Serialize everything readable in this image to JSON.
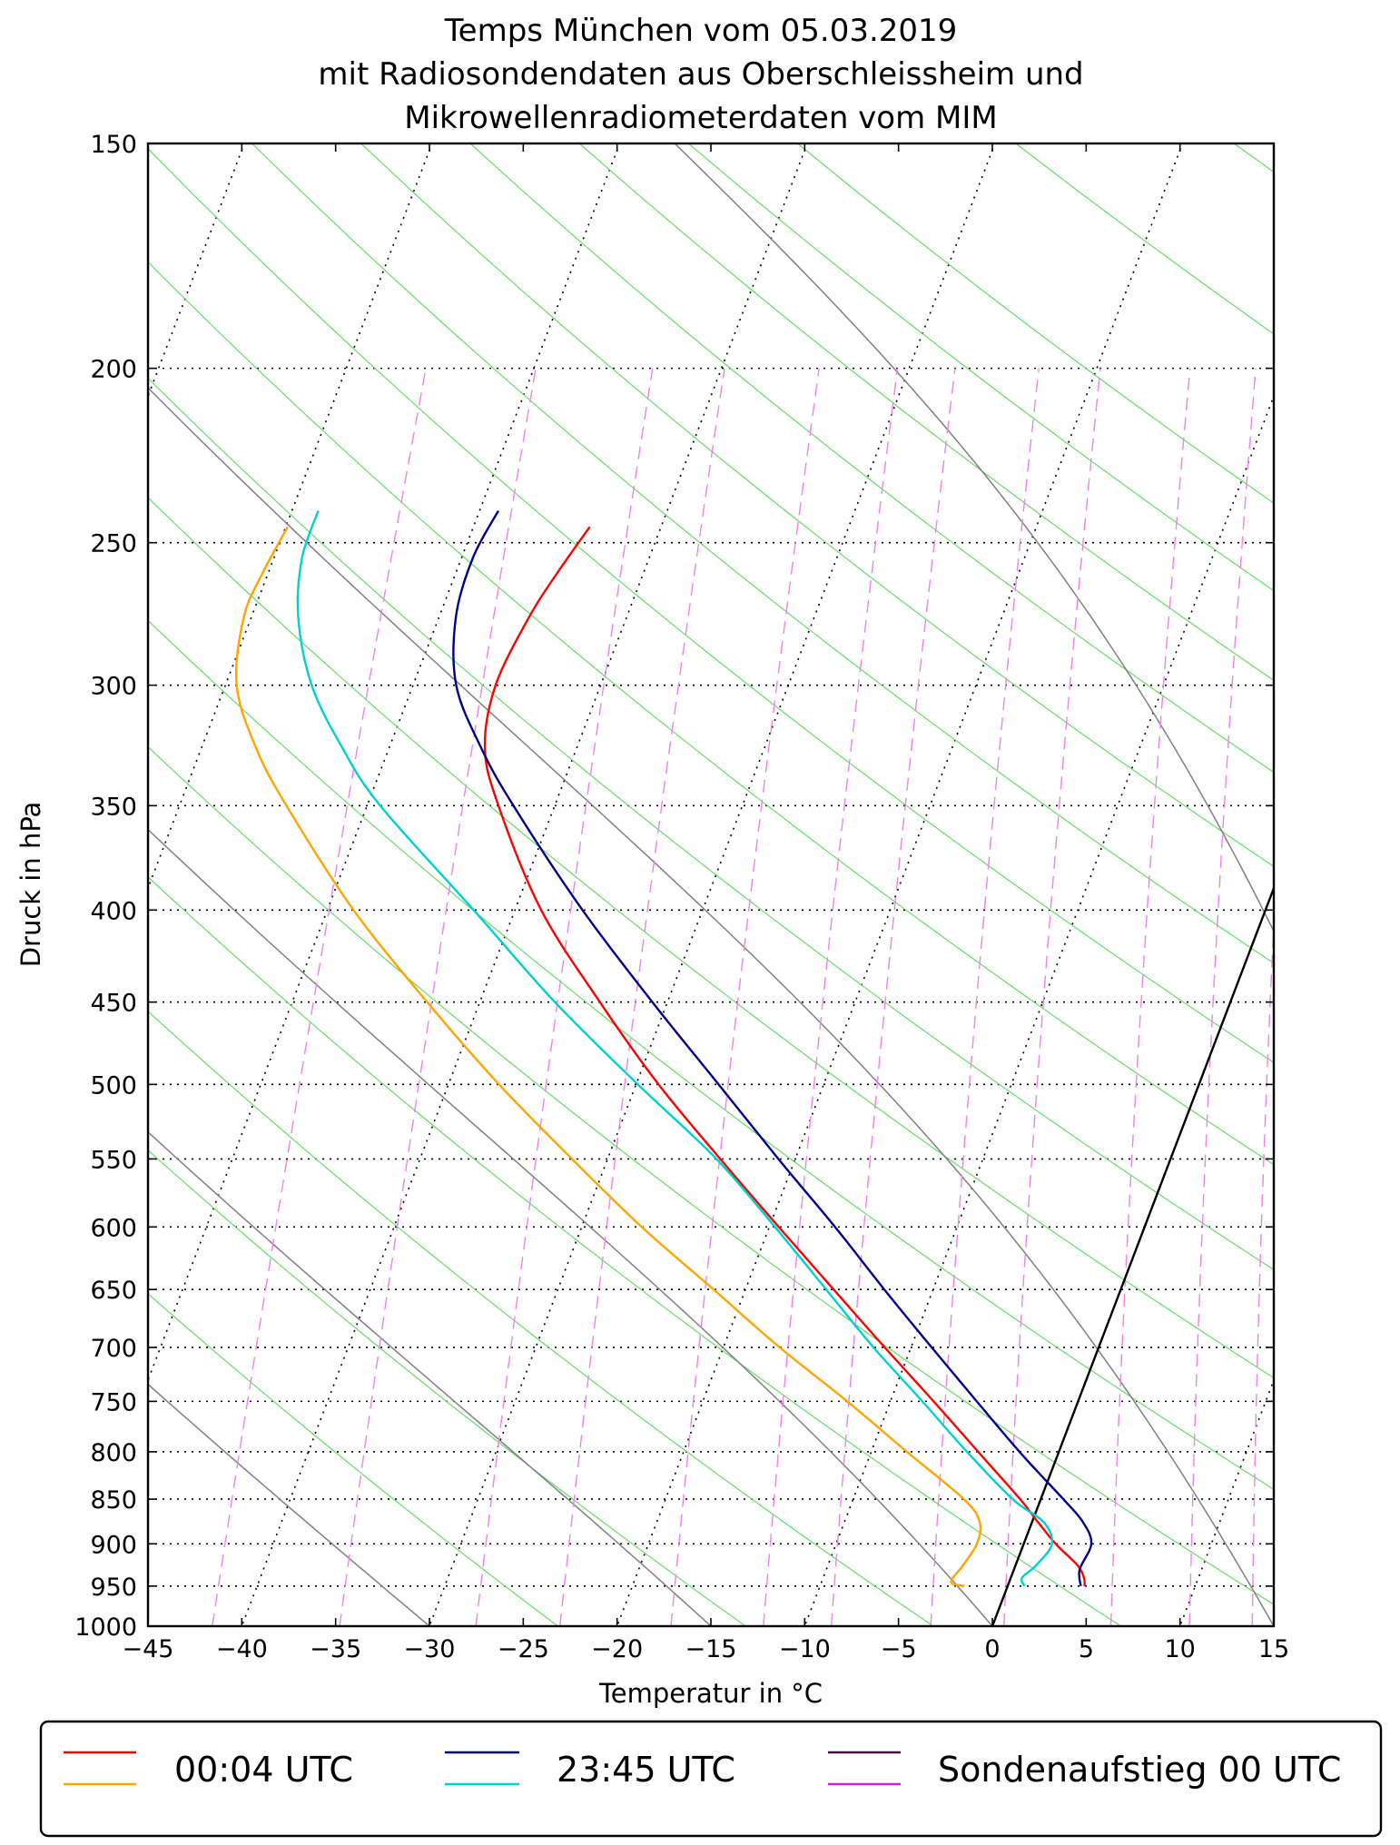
{
  "chart_data": {
    "type": "line",
    "subtype": "skew-T log-p diagram",
    "title": [
      "Temps München vom 05.03.2019",
      "mit Radiosondendaten aus Oberschleissheim und",
      "Mikrowellenradiometerdaten vom MIM"
    ],
    "xlabel": "Temperatur in °C",
    "ylabel": "Druck in hPa",
    "xlim": [
      -45,
      15
    ],
    "ylim": [
      1000,
      150
    ],
    "x_ticks": [
      -45,
      -40,
      -35,
      -30,
      -25,
      -20,
      -15,
      -10,
      -5,
      0,
      5,
      10,
      15
    ],
    "x_tick_labels": [
      "−45",
      "−40",
      "−35",
      "−30",
      "−25",
      "−20",
      "−15",
      "−10",
      "−5",
      "0",
      "5",
      "10",
      "15"
    ],
    "y_ticks": [
      150,
      200,
      250,
      300,
      350,
      400,
      450,
      500,
      550,
      600,
      650,
      700,
      750,
      800,
      850,
      900,
      950,
      1000
    ],
    "y_tick_labels": [
      "150",
      "200",
      "250",
      "300",
      "350",
      "400",
      "450",
      "500",
      "550",
      "600",
      "650",
      "700",
      "750",
      "800",
      "850",
      "900",
      "950",
      "1000"
    ],
    "background": {
      "isotherms_dotted": [
        -140,
        -130,
        -120,
        -110,
        -100,
        -90,
        -80,
        -70,
        -60,
        -50,
        -40,
        -30,
        -20,
        -10,
        0,
        10
      ],
      "dry_adiabats_green_theta_K": [
        250,
        260,
        270,
        280,
        290,
        300,
        310,
        320,
        330,
        340,
        350,
        360,
        370,
        380,
        390,
        400,
        420,
        440,
        460
      ],
      "moist_adiabats_gray_start_C": [
        -30,
        -15,
        0,
        15,
        30,
        45
      ],
      "mixing_ratio_lines_dashed_g_per_kg": [
        0.1,
        0.2,
        0.4,
        0.6,
        1,
        1.5,
        2,
        3,
        4,
        6,
        8,
        10,
        12,
        16,
        20,
        24
      ],
      "highlighted_isotherm_C": 0
    },
    "series": [
      {
        "name": "00:04 UTC temperature",
        "legend_label": "00:04 UTC",
        "color": "#ff0000",
        "points": [
          [
            950,
            4.1
          ],
          [
            940,
            3.9
          ],
          [
            925,
            3.3
          ],
          [
            900,
            1.7
          ],
          [
            875,
            0.3
          ],
          [
            850,
            -1.1
          ],
          [
            800,
            -4.3
          ],
          [
            750,
            -7.7
          ],
          [
            700,
            -11.4
          ],
          [
            650,
            -15.3
          ],
          [
            600,
            -19.5
          ],
          [
            550,
            -24.0
          ],
          [
            500,
            -28.8
          ],
          [
            450,
            -33.6
          ],
          [
            400,
            -38.6
          ],
          [
            350,
            -43.0
          ],
          [
            325,
            -44.9
          ],
          [
            300,
            -45.6
          ],
          [
            275,
            -45.2
          ],
          [
            260,
            -44.6
          ],
          [
            245,
            -43.8
          ]
        ]
      },
      {
        "name": "00:04 UTC dew point",
        "legend_label": "00:04 UTC",
        "color": "#ffa500",
        "points": [
          [
            950,
            -2.3
          ],
          [
            945,
            -3.1
          ],
          [
            925,
            -2.8
          ],
          [
            900,
            -2.5
          ],
          [
            875,
            -2.8
          ],
          [
            850,
            -4.1
          ],
          [
            800,
            -8.1
          ],
          [
            750,
            -12.3
          ],
          [
            700,
            -17.0
          ],
          [
            650,
            -21.7
          ],
          [
            600,
            -26.8
          ],
          [
            550,
            -31.9
          ],
          [
            500,
            -37.3
          ],
          [
            450,
            -42.8
          ],
          [
            400,
            -48.6
          ],
          [
            350,
            -54.3
          ],
          [
            325,
            -57.1
          ],
          [
            300,
            -59.4
          ],
          [
            275,
            -60.4
          ],
          [
            260,
            -60.3
          ],
          [
            245,
            -59.9
          ]
        ]
      },
      {
        "name": "23:45 UTC temperature",
        "legend_label": "23:45 UTC",
        "color": "#00008b",
        "points": [
          [
            950,
            3.9
          ],
          [
            930,
            3.5
          ],
          [
            900,
            3.6
          ],
          [
            875,
            2.7
          ],
          [
            850,
            1.2
          ],
          [
            800,
            -2.1
          ],
          [
            750,
            -5.4
          ],
          [
            700,
            -8.9
          ],
          [
            650,
            -12.6
          ],
          [
            600,
            -16.5
          ],
          [
            550,
            -20.9
          ],
          [
            500,
            -25.6
          ],
          [
            450,
            -30.8
          ],
          [
            400,
            -36.4
          ],
          [
            350,
            -42.2
          ],
          [
            325,
            -45.1
          ],
          [
            300,
            -47.7
          ],
          [
            275,
            -49.1
          ],
          [
            255,
            -49.4
          ],
          [
            240,
            -49.0
          ]
        ]
      },
      {
        "name": "23:45 UTC dew point",
        "legend_label": "23:45 UTC",
        "color": "#00d0d0",
        "points": [
          [
            950,
            0.9
          ],
          [
            940,
            0.6
          ],
          [
            925,
            1.1
          ],
          [
            900,
            1.5
          ],
          [
            875,
            0.6
          ],
          [
            850,
            -1.5
          ],
          [
            800,
            -4.9
          ],
          [
            750,
            -8.3
          ],
          [
            700,
            -12.0
          ],
          [
            650,
            -15.7
          ],
          [
            600,
            -19.7
          ],
          [
            550,
            -24.2
          ],
          [
            500,
            -29.9
          ],
          [
            450,
            -36.0
          ],
          [
            400,
            -42.2
          ],
          [
            350,
            -49.3
          ],
          [
            325,
            -52.5
          ],
          [
            300,
            -55.4
          ],
          [
            275,
            -57.5
          ],
          [
            255,
            -58.5
          ],
          [
            240,
            -58.6
          ]
        ]
      }
    ],
    "legend": {
      "placement": "bottom, below plot",
      "entries": [
        {
          "label": "00:04 UTC",
          "colors": [
            "#ff0000",
            "#ffa500"
          ]
        },
        {
          "label": "23:45 UTC",
          "colors": [
            "#00008b",
            "#00d0d0"
          ]
        },
        {
          "label": "Sondenaufstieg 00 UTC",
          "colors": [
            "#4b0a3a",
            "#d020d0"
          ]
        }
      ]
    }
  }
}
